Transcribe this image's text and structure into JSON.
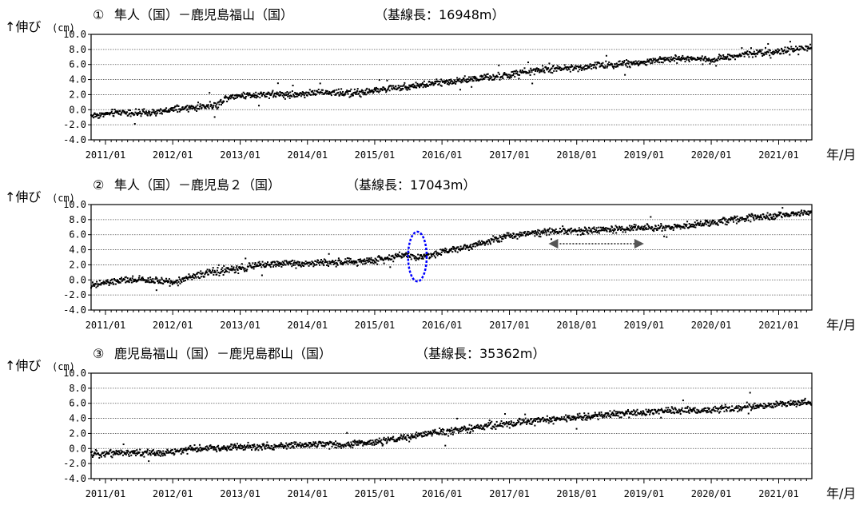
{
  "chart_data": [
    {
      "type": "scatter",
      "number": "①",
      "title": "隼人（国）－鹿児島福山（国）",
      "baseline": "（基線長：16948m）",
      "ylabel_arrow": "↑伸び",
      "ylabel_unit": "(cm)",
      "xlabel": "年/月",
      "ylim": [
        -4.0,
        10.0
      ],
      "yticks": [
        "10.0",
        "8.0",
        "6.0",
        "4.0",
        "2.0",
        "0.0",
        "-2.0",
        "-4.0"
      ],
      "xlim": [
        "2010-10-15",
        "2021-06-30"
      ],
      "xticks": [
        "2011/01",
        "2012/01",
        "2013/01",
        "2014/01",
        "2015/01",
        "2016/01",
        "2017/01",
        "2018/01",
        "2019/01",
        "2020/01",
        "2021/01"
      ],
      "grid": true,
      "series": [
        {
          "x": [
            "2010-10-15",
            "2011-01-01",
            "2011-04-01",
            "2011-07-01",
            "2011-10-01",
            "2012-01-01",
            "2012-04-01",
            "2012-07-01",
            "2012-09-01",
            "2012-10-15",
            "2013-01-01",
            "2013-04-01",
            "2013-07-01",
            "2013-10-01",
            "2014-01-01",
            "2014-04-01",
            "2014-07-01",
            "2014-10-01",
            "2015-01-01",
            "2015-04-01",
            "2015-07-01",
            "2015-10-01",
            "2016-01-01",
            "2016-04-01",
            "2016-07-01",
            "2016-10-01",
            "2017-01-01",
            "2017-04-01",
            "2017-07-01",
            "2017-10-01",
            "2018-01-01",
            "2018-04-01",
            "2018-07-01",
            "2018-10-01",
            "2019-01-01",
            "2019-04-01",
            "2019-07-01",
            "2019-10-01",
            "2020-01-01",
            "2020-04-01",
            "2020-07-01",
            "2020-10-01",
            "2021-01-01",
            "2021-04-01",
            "2021-06-30"
          ],
          "y": [
            -0.8,
            -0.6,
            -0.3,
            -0.5,
            -0.4,
            0.0,
            0.2,
            0.5,
            0.6,
            1.6,
            1.9,
            2.0,
            2.1,
            2.0,
            2.2,
            2.3,
            2.2,
            2.3,
            2.5,
            2.9,
            3.1,
            3.3,
            3.6,
            3.9,
            4.1,
            4.3,
            4.6,
            5.0,
            5.3,
            5.4,
            5.6,
            5.8,
            6.0,
            6.1,
            6.3,
            6.6,
            6.8,
            6.8,
            6.6,
            7.0,
            7.4,
            7.6,
            7.7,
            8.0,
            8.3
          ]
        }
      ]
    },
    {
      "type": "scatter",
      "number": "②",
      "title": "隼人（国）－鹿児島２（国）",
      "baseline": "（基線長：17043m）",
      "ylabel_arrow": "↑伸び",
      "ylabel_unit": "(cm)",
      "xlabel": "年/月",
      "ylim": [
        -4.0,
        10.0
      ],
      "yticks": [
        "10.0",
        "8.0",
        "6.0",
        "4.0",
        "2.0",
        "0.0",
        "-2.0",
        "-4.0"
      ],
      "xlim": [
        "2010-10-15",
        "2021-06-30"
      ],
      "xticks": [
        "2011/01",
        "2012/01",
        "2013/01",
        "2014/01",
        "2015/01",
        "2016/01",
        "2017/01",
        "2018/01",
        "2019/01",
        "2020/01",
        "2021/01"
      ],
      "grid": true,
      "series": [
        {
          "x": [
            "2010-10-15",
            "2011-01-01",
            "2011-04-01",
            "2011-07-01",
            "2011-10-01",
            "2012-01-01",
            "2012-04-01",
            "2012-07-01",
            "2012-10-01",
            "2013-01-01",
            "2013-04-01",
            "2013-07-01",
            "2013-10-01",
            "2014-01-01",
            "2014-04-01",
            "2014-07-01",
            "2014-10-01",
            "2015-01-01",
            "2015-04-01",
            "2015-07-01",
            "2015-08-15",
            "2015-10-01",
            "2016-01-01",
            "2016-04-01",
            "2016-07-01",
            "2016-10-01",
            "2017-01-01",
            "2017-04-01",
            "2017-07-01",
            "2017-10-01",
            "2018-01-01",
            "2018-04-01",
            "2018-07-01",
            "2018-10-01",
            "2019-01-01",
            "2019-04-01",
            "2019-07-01",
            "2019-10-01",
            "2020-01-01",
            "2020-04-01",
            "2020-07-01",
            "2020-10-01",
            "2021-01-01",
            "2021-04-01",
            "2021-06-30"
          ],
          "y": [
            -0.8,
            -0.4,
            -0.1,
            0.0,
            -0.1,
            -0.3,
            0.3,
            0.9,
            1.2,
            1.5,
            1.9,
            2.1,
            2.2,
            2.2,
            2.3,
            2.3,
            2.4,
            2.6,
            3.0,
            3.4,
            2.9,
            3.2,
            3.7,
            4.2,
            4.7,
            5.3,
            5.8,
            6.2,
            6.4,
            6.5,
            6.5,
            6.6,
            6.7,
            6.8,
            6.9,
            7.0,
            7.1,
            7.2,
            7.6,
            7.9,
            8.2,
            8.3,
            8.5,
            8.8,
            9.0
          ]
        }
      ]
    },
    {
      "type": "scatter",
      "number": "③",
      "title": "鹿児島福山（国）－鹿児島郡山（国）",
      "baseline": "（基線長：35362m）",
      "ylabel_arrow": "↑伸び",
      "ylabel_unit": "(cm)",
      "xlabel": "年/月",
      "ylim": [
        -4.0,
        10.0
      ],
      "yticks": [
        "10.0",
        "8.0",
        "6.0",
        "4.0",
        "2.0",
        "0.0",
        "-2.0",
        "-4.0"
      ],
      "xlim": [
        "2010-10-15",
        "2021-06-30"
      ],
      "xticks": [
        "2011/01",
        "2012/01",
        "2013/01",
        "2014/01",
        "2015/01",
        "2016/01",
        "2017/01",
        "2018/01",
        "2019/01",
        "2020/01",
        "2021/01"
      ],
      "grid": true,
      "series": [
        {
          "x": [
            "2010-10-15",
            "2011-01-01",
            "2011-04-01",
            "2011-07-01",
            "2011-10-01",
            "2012-01-01",
            "2012-04-01",
            "2012-07-01",
            "2012-10-01",
            "2013-01-01",
            "2013-04-01",
            "2013-07-01",
            "2013-10-01",
            "2014-01-01",
            "2014-04-01",
            "2014-07-01",
            "2014-10-01",
            "2015-01-01",
            "2015-04-01",
            "2015-07-01",
            "2015-10-01",
            "2016-01-01",
            "2016-04-01",
            "2016-07-01",
            "2016-10-01",
            "2017-01-01",
            "2017-04-01",
            "2017-07-01",
            "2017-10-01",
            "2018-01-01",
            "2018-04-01",
            "2018-07-01",
            "2018-10-01",
            "2019-01-01",
            "2019-04-01",
            "2019-07-01",
            "2019-10-01",
            "2020-01-01",
            "2020-04-01",
            "2020-07-01",
            "2020-10-01",
            "2021-01-01",
            "2021-04-01",
            "2021-06-30"
          ],
          "y": [
            -0.8,
            -0.6,
            -0.5,
            -0.6,
            -0.6,
            -0.5,
            -0.1,
            0.0,
            0.1,
            0.2,
            0.2,
            0.3,
            0.4,
            0.5,
            0.6,
            0.5,
            0.7,
            0.8,
            1.1,
            1.5,
            1.9,
            2.2,
            2.5,
            2.7,
            3.0,
            3.3,
            3.6,
            3.8,
            3.9,
            4.1,
            4.3,
            4.5,
            4.7,
            4.8,
            5.0,
            5.0,
            5.1,
            5.1,
            5.3,
            5.5,
            5.7,
            5.8,
            6.0,
            6.1
          ]
        }
      ]
    }
  ],
  "annotations": {
    "ellipse": {
      "chart": 1,
      "center_x": "2015-08-20",
      "center_y": 3.0,
      "x_from": "2015-07-01",
      "x_to": "2015-10-10",
      "y_from": -0.2,
      "y_to": 6.4,
      "color": "#0000ff"
    },
    "double_arrow": {
      "chart": 1,
      "x_from": "2017-08-01",
      "x_to": "2019-01-01",
      "y": 4.8,
      "color": "#555555"
    }
  }
}
